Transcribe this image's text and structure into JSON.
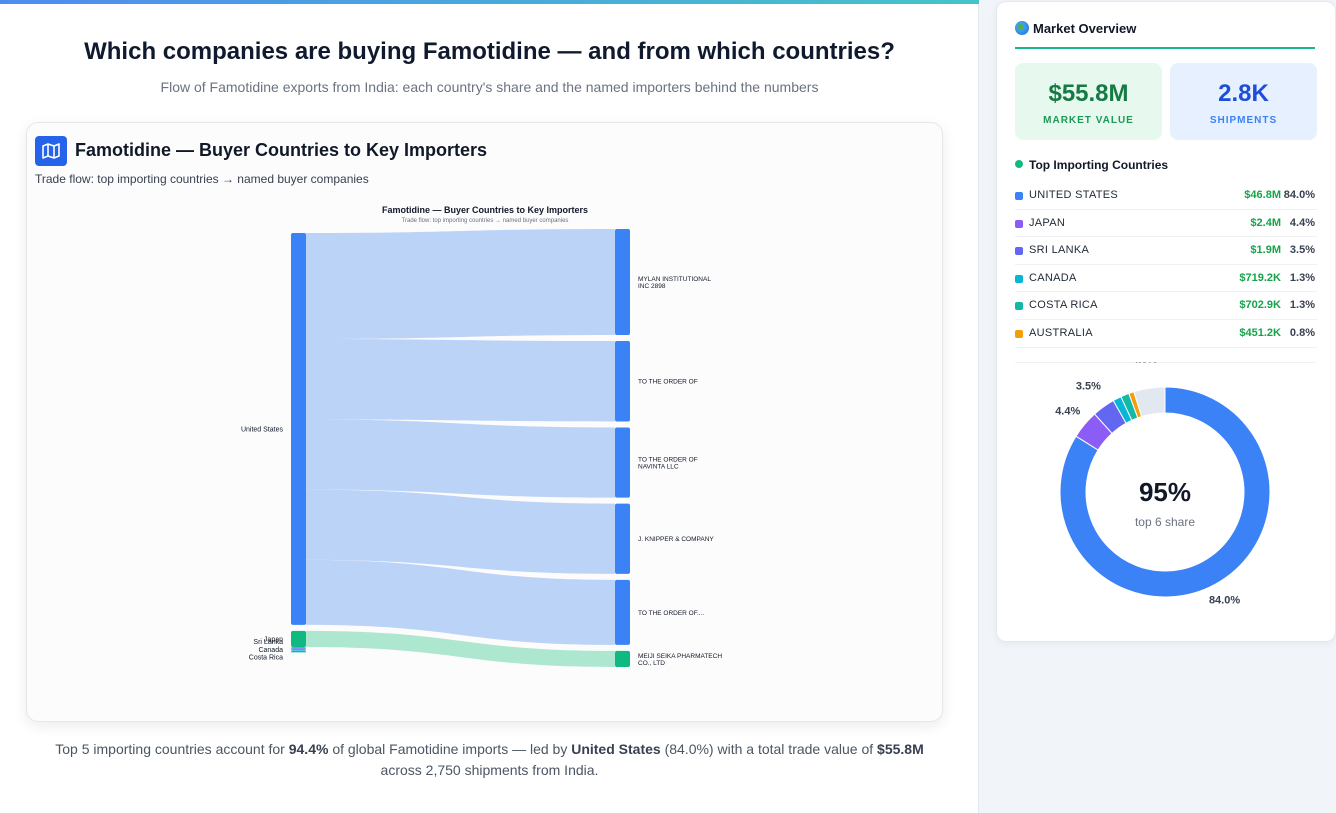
{
  "page": {
    "title": "Which companies are buying Famotidine — and from which countries?",
    "subtitle": "Flow of Famotidine exports from India: each country's share and the named importers behind the numbers"
  },
  "chart_card": {
    "title": "Famotidine — Buyer Countries to Key Importers",
    "subtitle": "Trade flow: top importing countries → named buyer companies",
    "icon": "map-icon"
  },
  "chart_data": {
    "type": "sankey",
    "title": "Famotidine — Buyer Countries to Key Importers",
    "subtitle": "Trade flow: top importing countries → named buyer companies",
    "sources": [
      {
        "name": "United States",
        "color": "#3b82f6"
      },
      {
        "name": "Japan",
        "color": "#10b981"
      },
      {
        "name": "Sri Lanka",
        "color": "#6366f1"
      },
      {
        "name": "Canada",
        "color": "#06b6d4"
      },
      {
        "name": "Costa Rica",
        "color": "#14b8a6"
      }
    ],
    "targets": [
      {
        "name": "MYLAN INSTITUTIONAL INC 2898",
        "color": "#3b82f6"
      },
      {
        "name": "TO THE ORDER OF",
        "color": "#3b82f6"
      },
      {
        "name": "TO THE ORDER OF NAVINTA LLC",
        "color": "#3b82f6"
      },
      {
        "name": "J. KNIPPER & COMPANY",
        "color": "#3b82f6"
      },
      {
        "name": "TO THE ORDER OF....",
        "color": "#3b82f6"
      },
      {
        "name": "MEIJI SEIKA PHARMATECH CO., LTD",
        "color": "#10b981"
      }
    ],
    "links": [
      {
        "source": "United States",
        "target": "MYLAN INSTITUTIONAL INC 2898",
        "value": 14.5
      },
      {
        "source": "United States",
        "target": "TO THE ORDER OF",
        "value": 11
      },
      {
        "source": "United States",
        "target": "TO THE ORDER OF NAVINTA LLC",
        "value": 9.6
      },
      {
        "source": "United States",
        "target": "J. KNIPPER & COMPANY",
        "value": 9.6
      },
      {
        "source": "United States",
        "target": "TO THE ORDER OF....",
        "value": 8.9
      },
      {
        "source": "Japan",
        "target": "MEIJI SEIKA PHARMATECH CO., LTD",
        "value": 2.2
      },
      {
        "source": "Sri Lanka",
        "target": null,
        "value": 0.05
      },
      {
        "source": "Canada",
        "target": null,
        "value": 0.05
      },
      {
        "source": "Costa Rica",
        "target": null,
        "value": 0.05
      }
    ],
    "link_colors": {
      "United States": "#b8d1f8",
      "Japan": "#a9e6cc"
    }
  },
  "insight": {
    "p1": "Top 5 importing countries account for ",
    "b1": "94.4%",
    "p2": " of global Famotidine imports — led by ",
    "b2": "United States",
    "p3": " (84.0%) with a total trade value of ",
    "b3": "$55.8M",
    "p4": " across 2,750 shipments from India."
  },
  "sidebar": {
    "title": "Market Overview",
    "icon": "globe-icon",
    "stats": [
      {
        "value": "$55.8M",
        "label": "MARKET VALUE"
      },
      {
        "value": "2.8K",
        "label": "SHIPMENTS"
      }
    ],
    "list_title": "Top Importing Countries",
    "countries": [
      {
        "name": "UNITED STATES",
        "value": "$46.8M",
        "pct": "84.0%",
        "share": 84.0,
        "color": "#3b82f6"
      },
      {
        "name": "JAPAN",
        "value": "$2.4M",
        "pct": "4.4%",
        "share": 4.4,
        "color": "#8b5cf6"
      },
      {
        "name": "SRI LANKA",
        "value": "$1.9M",
        "pct": "3.5%",
        "share": 3.5,
        "color": "#6366f1"
      },
      {
        "name": "CANADA",
        "value": "$719.2K",
        "pct": "1.3%",
        "share": 1.3,
        "color": "#06b6d4"
      },
      {
        "name": "COSTA RICA",
        "value": "$702.9K",
        "pct": "1.3%",
        "share": 1.3,
        "color": "#14b8a6"
      },
      {
        "name": "AUSTRALIA",
        "value": "$451.2K",
        "pct": "0.8%",
        "share": 0.8,
        "color": "#f59e0b"
      }
    ],
    "donut": {
      "center_value": "95%",
      "center_label": "top 6 share",
      "other_share": 4.8,
      "other_color": "#e2e8f0",
      "labels": [
        "84.0%",
        "4.4%",
        "3.5%",
        "4.8%"
      ]
    }
  }
}
